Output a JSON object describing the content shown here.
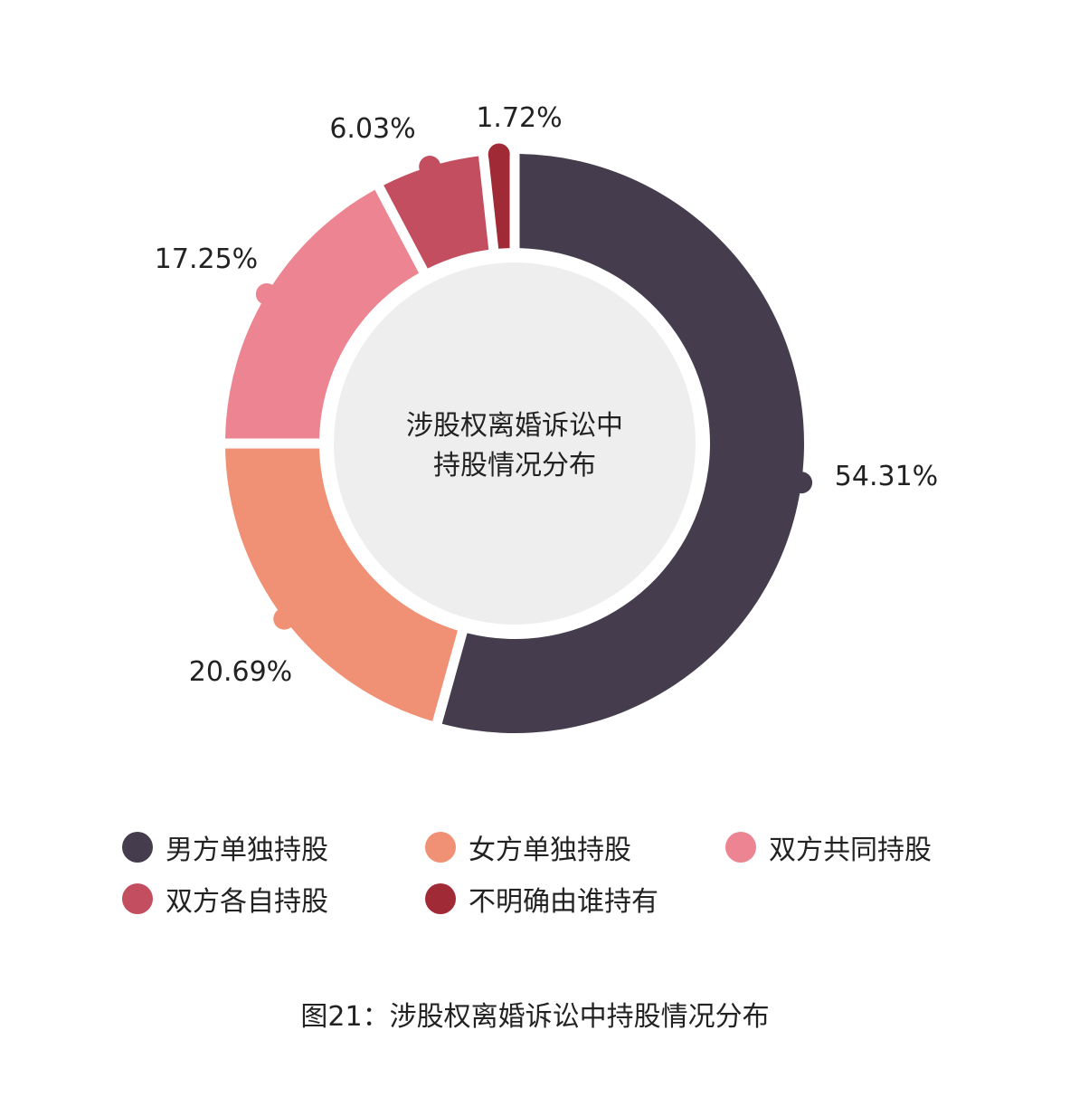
{
  "chart_data": {
    "type": "donut",
    "center_label": [
      "涉股权离婚诉讼中",
      "持股情况分布"
    ],
    "series": [
      {
        "name": "男方单独持股",
        "value": 54.31,
        "label": "54.31%",
        "color": "#453D4E"
      },
      {
        "name": "女方单独持股",
        "value": 20.69,
        "label": "20.69%",
        "color": "#F09074"
      },
      {
        "name": "双方共同持股",
        "value": 17.25,
        "label": "17.25%",
        "color": "#EC8491"
      },
      {
        "name": "双方各自持股",
        "value": 6.03,
        "label": "6.03%",
        "color": "#C34E60"
      },
      {
        "name": "不明确由谁持有",
        "value": 1.72,
        "label": "1.72%",
        "color": "#A12A37"
      }
    ],
    "center_fill": "#EEEEEE"
  },
  "legend": [
    {
      "label": "男方单独持股",
      "color": "#453D4E"
    },
    {
      "label": "女方单独持股",
      "color": "#F09074"
    },
    {
      "label": "双方共同持股",
      "color": "#EC8491"
    },
    {
      "label": "双方各自持股",
      "color": "#C34E60"
    },
    {
      "label": "不明确由谁持有",
      "color": "#A12A37"
    }
  ],
  "caption": "图21：涉股权离婚诉讼中持股情况分布"
}
